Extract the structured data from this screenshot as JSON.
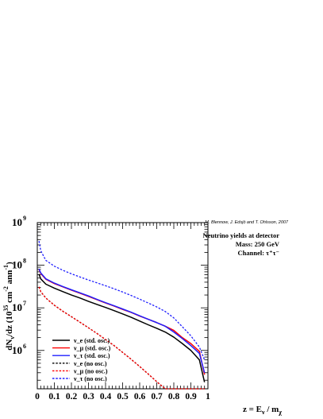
{
  "chart_data": {
    "type": "line",
    "credit": "M. Blennow, J. Edsjö and T. Ohlsson, 2007",
    "info_lines": [
      "Neutrino yields at detector",
      "Mass: 250 GeV",
      "Channel: τ⁺τ⁻"
    ],
    "xlabel": "z = E_ν / m_χ",
    "ylabel": "dN_ν/dz (10^35 cm^-2 ann^-1)",
    "xlim": [
      0,
      1
    ],
    "ylim_log10": [
      5.1,
      9
    ],
    "yscale": "log",
    "grid": false,
    "legend_position": "bottom-left",
    "x_ticks": [
      0,
      0.1,
      0.2,
      0.3,
      0.4,
      0.5,
      0.6,
      0.7,
      0.8,
      0.9,
      1
    ],
    "x_tick_labels": [
      "0",
      "0.1",
      "0.2",
      "0.3",
      "0.4",
      "0.5",
      "0.6",
      "0.7",
      "0.8",
      "0.9",
      "1"
    ],
    "y_ticks": [
      {
        "value": 1000000,
        "base": "10",
        "exp": "6"
      },
      {
        "value": 10000000,
        "base": "10",
        "exp": "7"
      },
      {
        "value": 100000000,
        "base": "10",
        "exp": "8"
      },
      {
        "value": 1000000000,
        "base": "10",
        "exp": "9"
      }
    ],
    "x": [
      0.01,
      0.02,
      0.05,
      0.1,
      0.15,
      0.2,
      0.25,
      0.3,
      0.35,
      0.4,
      0.45,
      0.5,
      0.55,
      0.6,
      0.65,
      0.7,
      0.75,
      0.8,
      0.85,
      0.9,
      0.95,
      0.98
    ],
    "series": [
      {
        "name": "ν_e (std. osc.)",
        "color": "#000000",
        "dashed": false,
        "y": [
          62000000,
          48000000,
          36000000,
          29000000,
          24000000,
          20000000,
          17000000,
          14200000,
          12000000,
          10200000,
          8600000,
          7200000,
          6000000,
          4900000,
          4000000,
          3300000,
          2700000,
          2050000,
          1450000,
          1000000,
          600000,
          180000
        ]
      },
      {
        "name": "ν_μ (std. osc.)",
        "color": "#ff0000",
        "dashed": false,
        "y": [
          80000000,
          64000000,
          47000000,
          37000000,
          31000000,
          26000000,
          22000000,
          18500000,
          15500000,
          13000000,
          11000000,
          9200000,
          7800000,
          6400000,
          5400000,
          4500000,
          3700000,
          2950000,
          2000000,
          1450000,
          950000,
          270000
        ]
      },
      {
        "name": "ν_τ (std. osc.)",
        "color": "#1f1fff",
        "dashed": false,
        "y": [
          82000000,
          66000000,
          48000000,
          38000000,
          31500000,
          26500000,
          22500000,
          19000000,
          15800000,
          13200000,
          11200000,
          9400000,
          7900000,
          6500000,
          5400000,
          4500000,
          3700000,
          2700000,
          1900000,
          1300000,
          850000,
          300000
        ]
      },
      {
        "name": "ν_e (no osc.)",
        "color": "#000000",
        "dashed": true,
        "y": [
          31000000,
          24000000,
          17000000,
          11500000,
          8300000,
          6200000,
          4600000,
          3400000,
          2500000,
          1800000,
          1300000,
          900000,
          620000,
          420000,
          280000,
          185000,
          120000,
          75000,
          45000,
          25000,
          13000,
          8000
        ]
      },
      {
        "name": "ν_μ (no osc.)",
        "color": "#ff0000",
        "dashed": true,
        "y": [
          31000000,
          24000000,
          17000000,
          11500000,
          8300000,
          6200000,
          4600000,
          3400000,
          2500000,
          1800000,
          1300000,
          900000,
          620000,
          420000,
          280000,
          185000,
          120000,
          75000,
          45000,
          25000,
          13000,
          8000
        ]
      },
      {
        "name": "ν_τ (no osc.)",
        "color": "#1f1fff",
        "dashed": true,
        "y": [
          370000000,
          220000000,
          130000000,
          95000000,
          76000000,
          63000000,
          53000000,
          45000000,
          38500000,
          33000000,
          28000000,
          23500000,
          19500000,
          16000000,
          13000000,
          10500000,
          8200000,
          5800000,
          3600000,
          2200000,
          1200000,
          600000
        ]
      }
    ]
  }
}
